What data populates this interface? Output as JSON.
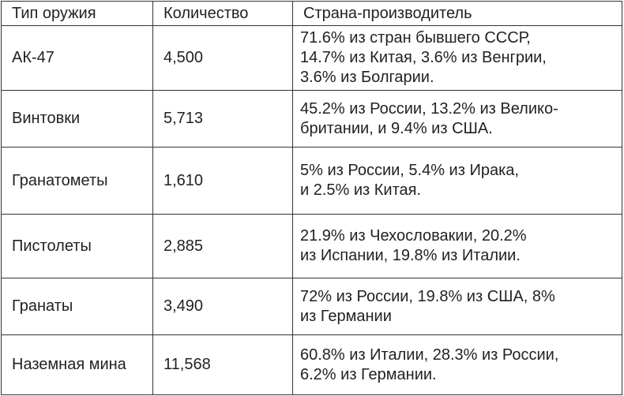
{
  "table": {
    "headers": {
      "type": "Тип оружия",
      "quantity": "Количество",
      "origin": "Страна-производитель"
    },
    "rows": [
      {
        "type": "АК-47",
        "quantity": "4,500",
        "origin_lines": [
          "71.6% из стран бывшего СССР,",
          "14.7% из Китая, 3.6% из Венгрии,",
          "3.6% из Болгарии."
        ]
      },
      {
        "type": "Винтовки",
        "quantity": "5,713",
        "origin_lines": [
          "45.2% из России, 13.2% из Велико-",
          "британии, и 9.4% из США."
        ]
      },
      {
        "type": "Гранатометы",
        "quantity": "1,610",
        "origin_lines": [
          "5% из России, 5.4% из Ирака,",
          "и 2.5% из Китая."
        ]
      },
      {
        "type": "Пистолеты",
        "quantity": "2,885",
        "origin_lines": [
          "21.9% из Чехословакии, 20.2%",
          "из Испании, 19.8% из Италии."
        ]
      },
      {
        "type": "Гранаты",
        "quantity": "3,490",
        "origin_lines": [
          "72% из России, 19.8% из США, 8%",
          "из Германии"
        ]
      },
      {
        "type": "Наземная мина",
        "quantity": "11,568",
        "origin_lines": [
          "60.8% из Италии, 28.3% из России,",
          "6.2% из Германии."
        ]
      }
    ]
  }
}
